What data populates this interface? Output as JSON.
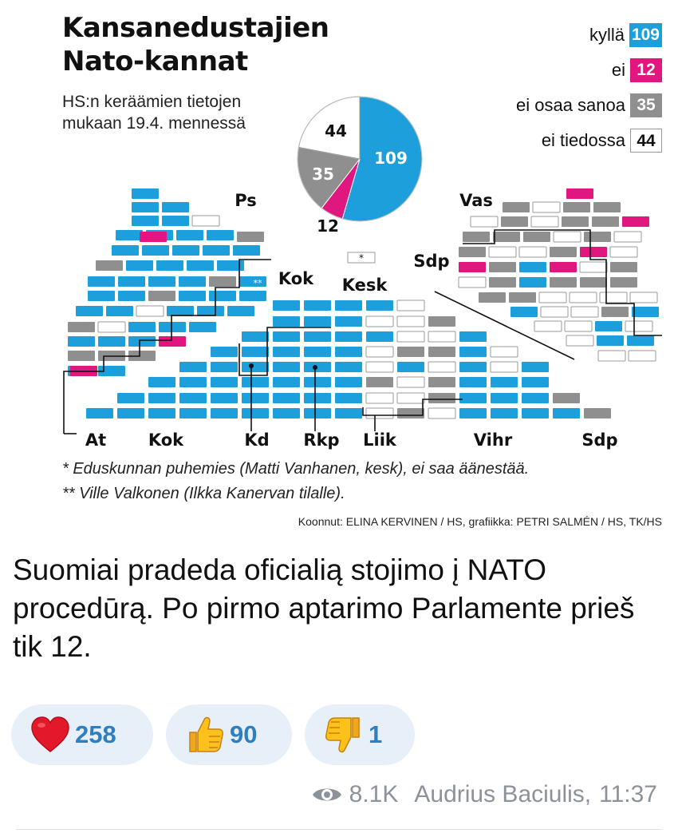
{
  "infographic": {
    "title_line1": "Kansanedustajien",
    "title_line2": "Nato-kannat",
    "subtitle_line1": "HS:n keräämien tietojen",
    "subtitle_line2": "mukaan 19.4. mennessä",
    "legend": [
      {
        "label": "kyllä",
        "value": "109",
        "color": "#1d9fdb"
      },
      {
        "label": "ei",
        "value": "12",
        "color": "#e0177e"
      },
      {
        "label": "ei osaa sanoa",
        "value": "35",
        "color": "#8f8f8f"
      },
      {
        "label": "ei tiedossa",
        "value": "44",
        "color": "#ffffff"
      }
    ],
    "pie_labels": {
      "yes": "109",
      "no": "12",
      "unsure": "35",
      "unknown": "44"
    },
    "party_labels_top": {
      "ps": "Ps",
      "kok": "Kok",
      "kesk": "Kesk",
      "vas": "Vas",
      "sdp": "Sdp"
    },
    "party_labels_bottom": [
      "At",
      "Kok",
      "Kd",
      "Rkp",
      "Liik",
      "Vihr",
      "Sdp"
    ],
    "speaker_marker": "*",
    "substitute_marker": "**",
    "note1": "* Eduskunnan puhemies (Matti Vanhanen, kesk), ei saa äänestää.",
    "note2": "** Ville Valkonen (Ilkka Kanervan tilalle).",
    "credit": "Koonnut: ELINA KERVINEN / HS, grafiikka: PETRI SALMÉN / HS, TK/HS"
  },
  "chart_data": {
    "type": "pie",
    "categories": [
      "kyllä",
      "ei",
      "ei osaa sanoa",
      "ei tiedossa"
    ],
    "values": [
      109,
      12,
      35,
      44
    ],
    "colors": [
      "#1d9fdb",
      "#e0177e",
      "#8f8f8f",
      "#ffffff"
    ]
  },
  "message": {
    "text": "Suomiai pradeda oficialią stojimo į NATO  procedūrą. Po pirmo aptarimo Parlamente prieš tik 12."
  },
  "reactions": [
    {
      "emoji": "heart-icon",
      "count": "258"
    },
    {
      "emoji": "thumbs-up-icon",
      "count": "90"
    },
    {
      "emoji": "thumbs-down-icon",
      "count": "1"
    }
  ],
  "footer": {
    "views": "8.1K",
    "author": "Audrius Baciulis,",
    "time": "11:37"
  }
}
